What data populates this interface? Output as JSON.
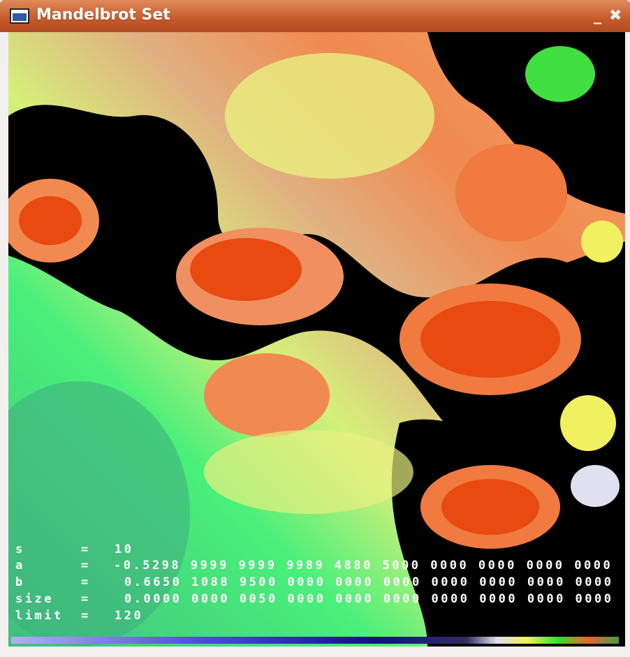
{
  "window": {
    "title": "Mandelbrot Set"
  },
  "overlay": {
    "separator": "=",
    "params": [
      {
        "name": "s",
        "value": "10"
      },
      {
        "name": "a",
        "value": "-0.5298 9999 9999 9989 4880 5000 0000 0000 0000 0000"
      },
      {
        "name": "b",
        "value": "0.6650 1088 9500 0000 0000 0000 0000 0000 0000 0000"
      },
      {
        "name": "size",
        "value": "0.0000 0000 0050 0000 0000 0000 0000 0000 0000 0000"
      },
      {
        "name": "limit",
        "value": "120"
      }
    ]
  }
}
